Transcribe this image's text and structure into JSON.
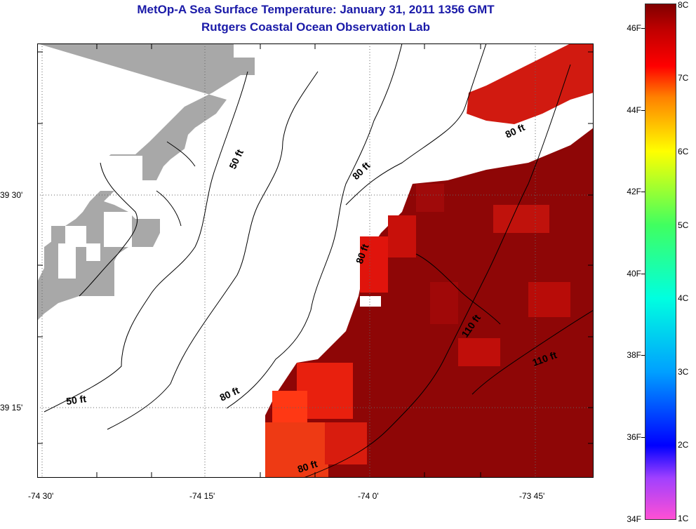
{
  "title": "MetOp-A Sea Surface Temperature:  January 31, 2011 1356 GMT",
  "subtitle": "Rutgers Coastal Ocean Observation Lab",
  "map": {
    "lat_labels": [
      "39 30'",
      "39 15'"
    ],
    "lon_labels": [
      "-74 30'",
      "-74 15'",
      "-74 0'",
      "-73 45'"
    ],
    "contour_labels": [
      "50 ft",
      "50 ft",
      "80 ft",
      "80 ft",
      "80 ft",
      "80 ft",
      "110 ft",
      "110 ft"
    ],
    "colors": {
      "land": "#a8a8a8",
      "no_data": "#ffffff",
      "sst_warm": "#8b0000",
      "sst_mid": "#d40000",
      "sst_cool": "#ff3010"
    }
  },
  "colorbar": {
    "fahrenheit": [
      "46F",
      "44F",
      "42F",
      "40F",
      "38F",
      "36F",
      "34F"
    ],
    "celsius": [
      "8C",
      "7C",
      "6C",
      "5C",
      "4C",
      "3C",
      "2C",
      "1C"
    ]
  }
}
